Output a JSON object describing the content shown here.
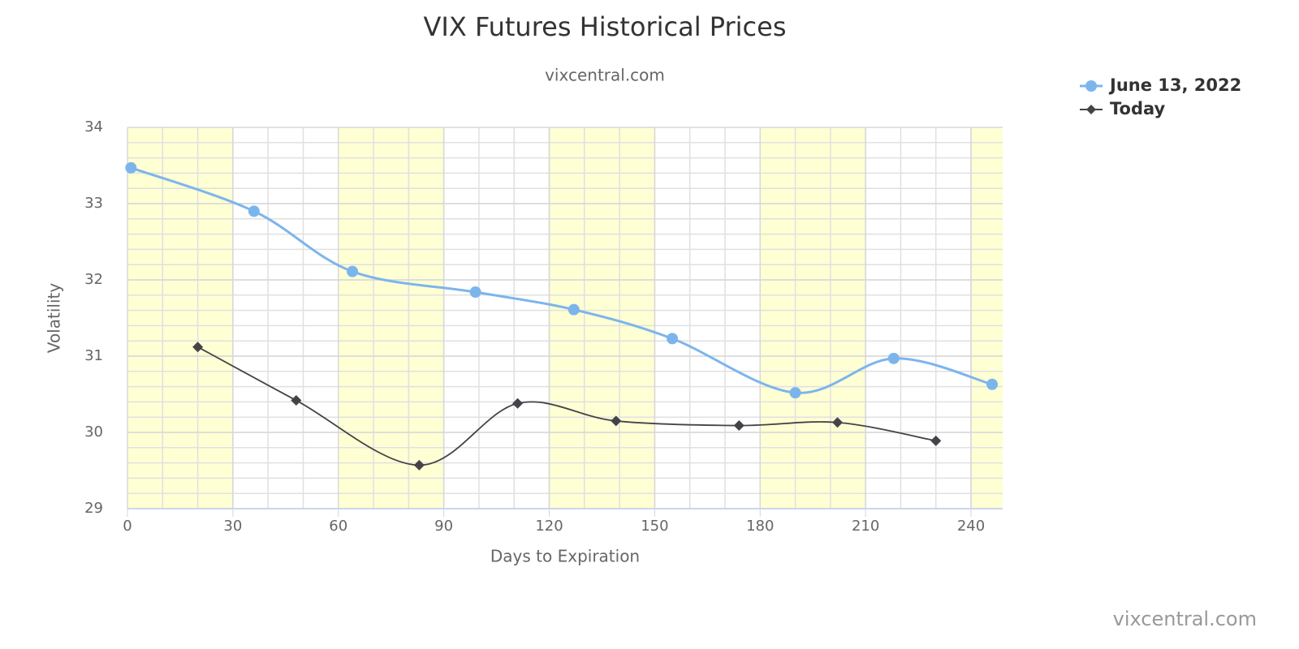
{
  "chart_data": {
    "type": "spline",
    "title": "VIX Futures Historical Prices",
    "subtitle": "vixcentral.com",
    "x_label": "Days to Expiration",
    "y_label": "Volatility",
    "credits": "vixcentral.com",
    "xlim": [
      0,
      249
    ],
    "xticks": [
      0,
      30,
      60,
      90,
      120,
      150,
      180,
      210,
      240
    ],
    "ylim": [
      29,
      34
    ],
    "yticks": [
      29,
      30,
      31,
      32,
      33,
      34
    ],
    "grid": true,
    "legend": "top-right",
    "series": [
      {
        "name": "June 13, 2022",
        "color": "#7cb5ec",
        "marker": "circle",
        "x": [
          1,
          36,
          64,
          99,
          127,
          155,
          190,
          218,
          246
        ],
        "values": [
          33.47,
          32.9,
          32.11,
          31.84,
          31.61,
          31.23,
          30.52,
          30.97,
          30.63
        ]
      },
      {
        "name": "Today",
        "color": "#434348",
        "marker": "diamond",
        "x": [
          20,
          48,
          83,
          111,
          139,
          174,
          202,
          230
        ],
        "values": [
          31.12,
          30.42,
          29.57,
          30.38,
          30.15,
          30.09,
          30.13,
          29.89
        ]
      }
    ]
  }
}
